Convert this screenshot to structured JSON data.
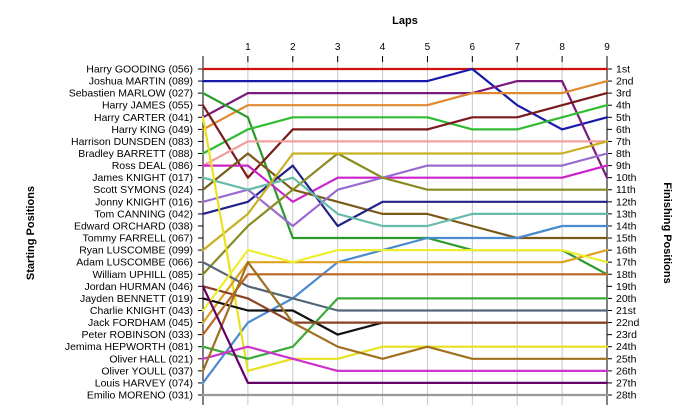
{
  "chart_data": {
    "type": "line",
    "title": "Laps",
    "ylabel_left": "Starting Positions",
    "ylabel_right": "Finishing Positions",
    "x": [
      0,
      1,
      2,
      3,
      4,
      5,
      6,
      7,
      8,
      9
    ],
    "x_tick_labels": [
      "1",
      "2",
      "3",
      "4",
      "5",
      "6",
      "7",
      "8",
      "9"
    ],
    "y_range": [
      1,
      28
    ],
    "grid": true,
    "starting_positions": [
      "Harry GOODING (056)",
      "Joshua MARTIN (089)",
      "Sebastien MARLOW (027)",
      "Harry JAMES (055)",
      "Harry CARTER (041)",
      "Harry KING (049)",
      "Harrison DUNSDEN (083)",
      "Bradley BARRETT (088)",
      "Ross DEAL (086)",
      "James KNIGHT (017)",
      "Scott SYMONS (024)",
      "Jonny KNIGHT (016)",
      "Tom CANNING (042)",
      "Edward ORCHARD (038)",
      "Tommy FARRELL (067)",
      "Ryan LUSCOMBE (099)",
      "Adam LUSCOMBE (066)",
      "William UPHILL (085)",
      "Jordan HURMAN (046)",
      "Jayden BENNETT (019)",
      "Charlie KNIGHT (043)",
      "Jack FORDHAM (045)",
      "Peter ROBINSON (033)",
      "Jemima HEPWORTH (081)",
      "Oliver HALL (021)",
      "Oliver YOULL (037)",
      "Louis HARVEY (074)",
      "Emilio MORENO (031)"
    ],
    "finishing_labels": [
      "1st",
      "2nd",
      "3rd",
      "4th",
      "5th",
      "6th",
      "7th",
      "8th",
      "9th",
      "10th",
      "11th",
      "12th",
      "13th",
      "14th",
      "15th",
      "16th",
      "17th",
      "18th",
      "19th",
      "20th",
      "21st",
      "22nd",
      "23rd",
      "24th",
      "25th",
      "26th",
      "27th",
      "28th"
    ],
    "series": [
      {
        "color": "#cc1111",
        "values": [
          1,
          1,
          1,
          1,
          1,
          1,
          1,
          1,
          1,
          1
        ]
      },
      {
        "color": "#1a1aaa",
        "values": [
          2,
          2,
          2,
          2,
          2,
          2,
          1,
          4,
          6,
          5
        ]
      },
      {
        "color": "#7a1a7a",
        "values": [
          5,
          3,
          3,
          3,
          3,
          3,
          3,
          2,
          2,
          10
        ]
      },
      {
        "color": "#e08a30",
        "values": [
          6,
          4,
          4,
          4,
          4,
          4,
          3,
          3,
          3,
          2
        ]
      },
      {
        "color": "#2a9a2a",
        "values": [
          3,
          5,
          15,
          15,
          15,
          15,
          16,
          16,
          16,
          18
        ]
      },
      {
        "color": "#33bb33",
        "values": [
          8,
          6,
          5,
          5,
          5,
          5,
          6,
          6,
          5,
          4
        ]
      },
      {
        "color": "#7a1a1a",
        "values": [
          4,
          10,
          6,
          6,
          6,
          6,
          5,
          5,
          4,
          3
        ]
      },
      {
        "color": "#f0a0a0",
        "values": [
          9,
          7,
          7,
          7,
          7,
          7,
          7,
          7,
          7,
          7
        ]
      },
      {
        "color": "#cc22cc",
        "values": [
          9,
          9,
          12,
          10,
          10,
          10,
          10,
          10,
          10,
          9
        ]
      },
      {
        "color": "#7a5a1a",
        "values": [
          11,
          8,
          11,
          12,
          13,
          13,
          14,
          15,
          15,
          15
        ]
      },
      {
        "color": "#222288",
        "values": [
          13,
          12,
          9,
          14,
          12,
          12,
          12,
          12,
          12,
          12
        ]
      },
      {
        "color": "#9a6ad0",
        "values": [
          12,
          11,
          14,
          11,
          10,
          9,
          9,
          9,
          9,
          8
        ]
      },
      {
        "color": "#8a8a20",
        "values": [
          18,
          14,
          11,
          8,
          10,
          11,
          11,
          11,
          11,
          11
        ]
      },
      {
        "color": "#66bbaa",
        "values": [
          10,
          11,
          10,
          13,
          14,
          14,
          13,
          13,
          13,
          13
        ]
      },
      {
        "color": "#c8b020",
        "values": [
          16,
          13,
          8,
          8,
          8,
          8,
          8,
          8,
          8,
          7
        ]
      },
      {
        "color": "#4a8ad0",
        "values": [
          27,
          22,
          20,
          17,
          16,
          15,
          15,
          15,
          14,
          14
        ]
      },
      {
        "color": "#e8e020",
        "values": [
          5,
          26,
          25,
          25,
          24,
          24,
          24,
          24,
          24,
          24
        ]
      },
      {
        "color": "#e0a020",
        "values": [
          22,
          17,
          17,
          17,
          17,
          17,
          17,
          17,
          17,
          16
        ]
      },
      {
        "color": "#556677",
        "values": [
          17,
          19,
          20,
          21,
          21,
          21,
          21,
          21,
          21,
          21
        ]
      },
      {
        "color": "#111111",
        "values": [
          20,
          21,
          21,
          23,
          22,
          22,
          22,
          22,
          22,
          22
        ]
      },
      {
        "color": "#3aaa3a",
        "values": [
          24,
          25,
          24,
          20,
          20,
          20,
          20,
          20,
          20,
          20
        ]
      },
      {
        "color": "#884422",
        "values": [
          19,
          20,
          22,
          22,
          22,
          22,
          22,
          22,
          22,
          22
        ]
      },
      {
        "color": "#bb6622",
        "values": [
          23,
          18,
          18,
          18,
          18,
          18,
          18,
          18,
          18,
          18
        ]
      },
      {
        "color": "#cc33cc",
        "values": [
          25,
          24,
          25,
          26,
          26,
          26,
          26,
          26,
          26,
          26
        ]
      },
      {
        "color": "#a07020",
        "values": [
          26,
          17,
          22,
          24,
          25,
          24,
          25,
          25,
          25,
          25
        ]
      },
      {
        "color": "#eeee30",
        "values": [
          21,
          16,
          17,
          16,
          16,
          16,
          16,
          16,
          16,
          17
        ]
      },
      {
        "color": "#660066",
        "values": [
          19,
          27,
          27,
          27,
          27,
          27,
          27,
          27,
          27,
          27
        ]
      },
      {
        "color": "#999999",
        "values": [
          28,
          28,
          28,
          28,
          28,
          28,
          28,
          28,
          28,
          28
        ]
      }
    ]
  }
}
